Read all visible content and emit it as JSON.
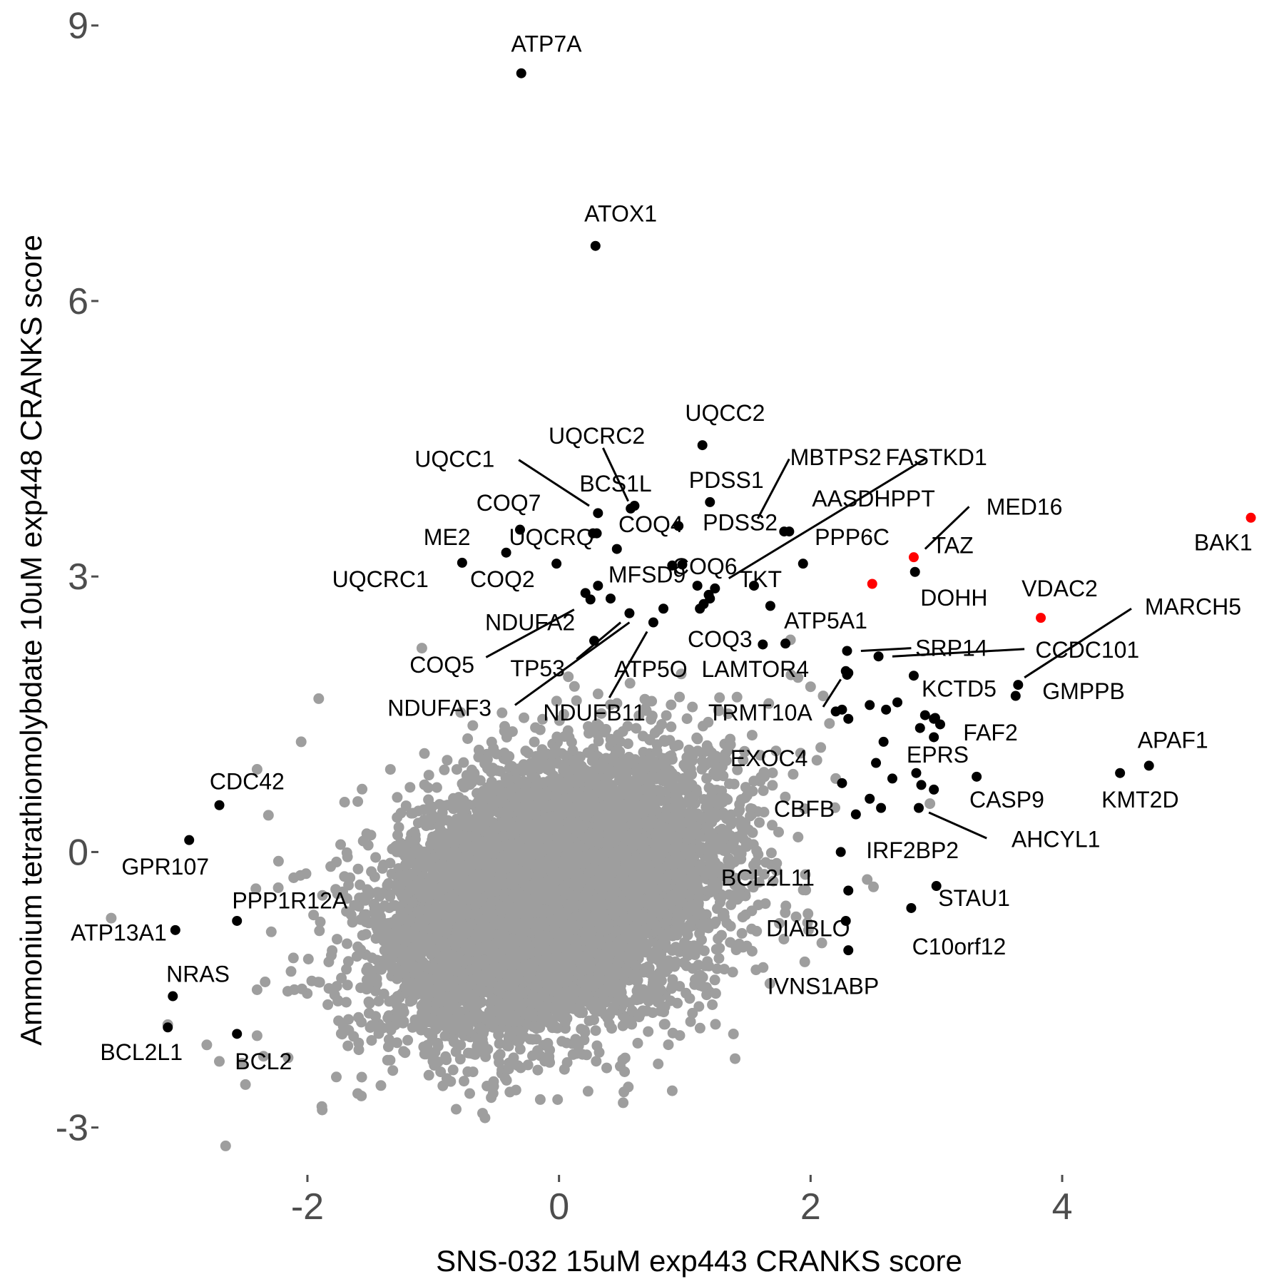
{
  "chart_data": {
    "type": "scatter",
    "title": "",
    "xlabel": "SNS-032 15uM exp443 CRANKS score",
    "ylabel": "Ammonium tetrathiomolybdate 10uM exp448 CRANKS score",
    "xlim": [
      -3.65,
      5.65
    ],
    "ylim": [
      -3.5,
      9.2
    ],
    "x_ticks": [
      -2,
      0,
      2,
      4
    ],
    "y_ticks": [
      -3,
      0,
      3,
      6,
      9
    ],
    "x_tick_labels": [
      "-2",
      "0",
      "2",
      "4"
    ],
    "y_tick_labels": [
      "-3",
      "0",
      "3",
      "6",
      "9"
    ],
    "grid": false,
    "legend": "none",
    "colors": {
      "background_genes": "#9e9e9e",
      "hit_genes": "#000000",
      "highlighted_genes": "#ff0000",
      "tick_text": "#4d4d4d"
    },
    "background_cloud": {
      "description_count": 9000,
      "center": [
        -0.05,
        -0.45
      ],
      "sd": [
        0.65,
        0.72
      ],
      "correlation": 0.32,
      "seed": 7
    },
    "background_outliers": [
      [
        -1.09,
        2.22
      ],
      [
        -1.91,
        1.67
      ],
      [
        -2.05,
        1.2
      ],
      [
        -2.4,
        0.9
      ],
      [
        -2.31,
        0.4
      ],
      [
        -2.23,
        -0.1
      ],
      [
        -2.41,
        -0.4
      ],
      [
        -3.56,
        -0.72
      ],
      [
        -2.13,
        -1.3
      ],
      [
        -2.4,
        -1.5
      ],
      [
        -3.11,
        -1.88
      ],
      [
        -2.8,
        -2.1
      ],
      [
        -2.7,
        -2.28
      ],
      [
        -2.52,
        -2.3
      ],
      [
        -2.4,
        -2.0
      ],
      [
        -1.77,
        -2.45
      ],
      [
        -1.6,
        -2.63
      ],
      [
        -0.71,
        -2.63
      ],
      [
        -0.52,
        -2.5
      ],
      [
        0.51,
        -2.73
      ],
      [
        0.9,
        -2.6
      ],
      [
        1.4,
        -2.25
      ],
      [
        -2.65,
        -3.2
      ],
      [
        1.84,
        2.31
      ],
      [
        1.9,
        1.9
      ],
      [
        2.0,
        1.8
      ],
      [
        2.1,
        1.7
      ],
      [
        2.45,
        -0.3
      ],
      [
        2.5,
        -0.38
      ],
      [
        2.2,
        0.8
      ],
      [
        2.15,
        1.4
      ],
      [
        2.05,
        1.0
      ]
    ],
    "points": [
      {
        "gene": "ATP7A",
        "x": -0.3,
        "y": 8.48,
        "color": "black",
        "label": [
          -0.1,
          8.78
        ]
      },
      {
        "gene": "ATOX1",
        "x": 0.29,
        "y": 6.6,
        "color": "black",
        "label": [
          0.49,
          6.93
        ]
      },
      {
        "gene": "UQCC2",
        "x": 1.14,
        "y": 4.43,
        "color": "black",
        "label": [
          1.32,
          4.76
        ]
      },
      {
        "gene": "UQCRC2",
        "x": 0.57,
        "y": 3.74,
        "color": "black",
        "label": [
          0.3,
          4.51
        ],
        "seg": [
          0.35,
          4.4,
          0.55,
          3.82
        ]
      },
      {
        "gene": "UQCC1",
        "x": 0.31,
        "y": 3.69,
        "color": "black",
        "label": [
          -0.83,
          4.26
        ],
        "seg": [
          -0.32,
          4.27,
          0.24,
          3.77
        ]
      },
      {
        "gene": "BCS1L",
        "x": 0.6,
        "y": 3.77,
        "color": "black",
        "label": [
          0.45,
          3.99
        ]
      },
      {
        "gene": "MBTPS2",
        "x": 1.83,
        "y": 3.49,
        "color": "black",
        "label": [
          2.2,
          4.28
        ],
        "seg": [
          1.83,
          4.28,
          1.58,
          3.63
        ]
      },
      {
        "gene": "FASTKD1",
        "x": 1.55,
        "y": 2.9,
        "color": "black",
        "label": [
          3.0,
          4.28
        ],
        "seg": [
          2.91,
          4.28,
          1.35,
          2.98
        ]
      },
      {
        "gene": "PDSS1",
        "x": 1.2,
        "y": 3.81,
        "color": "black",
        "label": [
          1.33,
          4.03
        ]
      },
      {
        "gene": "COQ7",
        "x": -0.31,
        "y": 3.51,
        "color": "black",
        "label": [
          -0.4,
          3.78
        ]
      },
      {
        "gene": "AASDHPPT",
        "x": 1.79,
        "y": 3.49,
        "color": "black",
        "label": [
          2.5,
          3.83
        ]
      },
      {
        "gene": "MED16",
        "x": 2.82,
        "y": 3.21,
        "color": "red",
        "label": [
          3.7,
          3.74
        ],
        "seg": [
          3.26,
          3.76,
          2.91,
          3.3
        ]
      },
      {
        "gene": "ME2",
        "x": -0.77,
        "y": 3.15,
        "color": "black",
        "label": [
          -0.89,
          3.41
        ]
      },
      {
        "gene": "UQCRQ",
        "x": -0.42,
        "y": 3.26,
        "color": "black",
        "label": [
          -0.06,
          3.41
        ]
      },
      {
        "gene": "COQ4",
        "x": 0.46,
        "y": 3.3,
        "color": "black",
        "label": [
          0.73,
          3.55
        ]
      },
      {
        "gene": "PDSS2",
        "x": 0.95,
        "y": 3.55,
        "color": "black",
        "label": [
          1.44,
          3.57
        ]
      },
      {
        "gene": "PPP6C",
        "x": 1.94,
        "y": 3.14,
        "color": "black",
        "label": [
          2.33,
          3.41
        ]
      },
      {
        "gene": "TAZ",
        "x": 2.83,
        "y": 3.05,
        "color": "black",
        "label": [
          3.13,
          3.32
        ]
      },
      {
        "gene": "BAK1",
        "x": 5.5,
        "y": 3.64,
        "color": "red",
        "label": [
          5.28,
          3.35
        ]
      },
      {
        "gene": "COQ6",
        "x": 1.24,
        "y": 2.87,
        "color": "black",
        "label": [
          1.16,
          3.09
        ]
      },
      {
        "gene": "UQCRC1",
        "x": -0.02,
        "y": 3.14,
        "color": "black",
        "label": [
          -1.42,
          2.95
        ]
      },
      {
        "gene": "COQ2",
        "x": 0.27,
        "y": 3.47,
        "color": "black",
        "label": [
          -0.45,
          2.95
        ]
      },
      {
        "gene": "MFSD9",
        "x": 0.98,
        "y": 3.13,
        "color": "black",
        "label": [
          0.7,
          3.0
        ]
      },
      {
        "gene": "TKT",
        "x": 1.2,
        "y": 2.76,
        "color": "black",
        "label": [
          1.6,
          2.95
        ]
      },
      {
        "gene": "DOHH",
        "x": 2.49,
        "y": 2.92,
        "color": "red",
        "label": [
          3.14,
          2.75
        ]
      },
      {
        "gene": "VDAC2",
        "x": 3.83,
        "y": 2.55,
        "color": "red",
        "label": [
          3.98,
          2.85
        ]
      },
      {
        "gene": "NDUFA2",
        "x": 0.41,
        "y": 2.76,
        "color": "black",
        "label": [
          -0.23,
          2.48
        ]
      },
      {
        "gene": "COQ5",
        "x": 0.21,
        "y": 2.82,
        "color": "black",
        "label": [
          -0.93,
          2.02
        ],
        "seg": [
          -0.58,
          2.12,
          0.12,
          2.64
        ]
      },
      {
        "gene": "TP53",
        "x": 0.56,
        "y": 2.6,
        "color": "black",
        "label": [
          -0.17,
          1.98
        ],
        "seg": [
          0.14,
          2.1,
          0.49,
          2.5
        ]
      },
      {
        "gene": "NDUFAF3",
        "x": 0.75,
        "y": 2.5,
        "color": "black",
        "label": [
          -0.95,
          1.55
        ],
        "seg": [
          -0.35,
          1.6,
          0.56,
          2.5
        ]
      },
      {
        "gene": "NDUFB11",
        "x": 0.28,
        "y": 2.3,
        "color": "black",
        "label": [
          0.28,
          1.5
        ],
        "seg": [
          0.4,
          1.68,
          0.7,
          2.4
        ]
      },
      {
        "gene": "ATP5O",
        "x": 1.12,
        "y": 2.65,
        "color": "black",
        "label": [
          0.73,
          1.97
        ]
      },
      {
        "gene": "LAMTOR4",
        "x": 1.62,
        "y": 2.26,
        "color": "black",
        "label": [
          1.56,
          1.97
        ]
      },
      {
        "gene": "COQ3",
        "x": 1.8,
        "y": 2.27,
        "color": "black",
        "label": [
          1.28,
          2.3
        ]
      },
      {
        "gene": "ATP5A1",
        "x": 1.68,
        "y": 2.68,
        "color": "black",
        "label": [
          2.12,
          2.5
        ]
      },
      {
        "gene": "MARCH5",
        "x": 3.65,
        "y": 1.82,
        "color": "black",
        "label": [
          5.04,
          2.65
        ],
        "seg": [
          4.55,
          2.65,
          3.7,
          1.9
        ]
      },
      {
        "gene": "SRP14",
        "x": 2.29,
        "y": 2.19,
        "color": "black",
        "label": [
          3.12,
          2.2
        ],
        "seg": [
          2.8,
          2.22,
          2.4,
          2.19
        ]
      },
      {
        "gene": "CCDC101",
        "x": 2.54,
        "y": 2.13,
        "color": "black",
        "label": [
          4.2,
          2.18
        ],
        "seg": [
          3.7,
          2.21,
          2.65,
          2.13
        ]
      },
      {
        "gene": "TRMT10A",
        "x": 2.25,
        "y": 1.55,
        "color": "black",
        "label": [
          1.6,
          1.5
        ],
        "seg": [
          2.1,
          1.58,
          2.24,
          1.88
        ]
      },
      {
        "gene": "KCTD5",
        "x": 2.82,
        "y": 1.92,
        "color": "black",
        "label": [
          3.18,
          1.76
        ]
      },
      {
        "gene": "GMPPB",
        "x": 3.63,
        "y": 1.7,
        "color": "black",
        "label": [
          4.17,
          1.73
        ]
      },
      {
        "gene": "FAF2",
        "x": 2.98,
        "y": 1.45,
        "color": "black",
        "label": [
          3.43,
          1.28
        ]
      },
      {
        "gene": "APAF1",
        "x": 4.69,
        "y": 0.94,
        "color": "black",
        "label": [
          4.88,
          1.2
        ]
      },
      {
        "gene": "EPRS",
        "x": 2.84,
        "y": 0.86,
        "color": "black",
        "label": [
          3.01,
          1.04
        ]
      },
      {
        "gene": "EXOC4",
        "x": 2.25,
        "y": 0.75,
        "color": "black",
        "label": [
          1.67,
          1.0
        ]
      },
      {
        "gene": "KMT2D",
        "x": 4.46,
        "y": 0.86,
        "color": "black",
        "label": [
          4.62,
          0.55
        ]
      },
      {
        "gene": "CASP9",
        "x": 3.32,
        "y": 0.82,
        "color": "black",
        "label": [
          3.56,
          0.55
        ]
      },
      {
        "gene": "CBFB",
        "x": 2.36,
        "y": 0.41,
        "color": "black",
        "label": [
          1.95,
          0.45
        ]
      },
      {
        "gene": "AHCYL1",
        "x": 2.86,
        "y": 0.48,
        "color": "black",
        "label": [
          3.95,
          0.12
        ],
        "seg": [
          3.4,
          0.15,
          2.94,
          0.43
        ]
      },
      {
        "gene": "IRF2BP2",
        "x": 2.24,
        "y": 0.0,
        "color": "black",
        "label": [
          2.81,
          0.0
        ]
      },
      {
        "gene": "CDC42",
        "x": -2.7,
        "y": 0.51,
        "color": "black",
        "label": [
          -2.48,
          0.75
        ]
      },
      {
        "gene": "GPR107",
        "x": -2.94,
        "y": 0.13,
        "color": "black",
        "label": [
          -3.13,
          -0.18
        ]
      },
      {
        "gene": "BCL2L11",
        "x": 2.3,
        "y": -0.42,
        "color": "black",
        "label": [
          1.66,
          -0.3
        ]
      },
      {
        "gene": "STAU1",
        "x": 3.0,
        "y": -0.37,
        "color": "black",
        "label": [
          3.3,
          -0.52
        ]
      },
      {
        "gene": "PPP1R12A",
        "x": -2.56,
        "y": -0.75,
        "color": "black",
        "label": [
          -2.14,
          -0.55
        ]
      },
      {
        "gene": "DIABLO",
        "x": 2.28,
        "y": -0.75,
        "color": "black",
        "label": [
          1.98,
          -0.85
        ]
      },
      {
        "gene": "C10orf12",
        "x": 2.8,
        "y": -0.61,
        "color": "black",
        "label": [
          3.18,
          -1.05
        ]
      },
      {
        "gene": "ATP13A1",
        "x": -3.05,
        "y": -0.85,
        "color": "black",
        "label": [
          -3.5,
          -0.9
        ]
      },
      {
        "gene": "IVNS1ABP",
        "x": 2.3,
        "y": -1.07,
        "color": "black",
        "label": [
          2.1,
          -1.48
        ]
      },
      {
        "gene": "NRAS",
        "x": -3.07,
        "y": -1.57,
        "color": "black",
        "label": [
          -2.87,
          -1.35
        ]
      },
      {
        "gene": "BCL2L1",
        "x": -3.11,
        "y": -1.91,
        "color": "black",
        "label": [
          -3.32,
          -2.2
        ]
      },
      {
        "gene": "BCL2",
        "x": -2.56,
        "y": -1.98,
        "color": "black",
        "label": [
          -2.35,
          -2.3
        ]
      }
    ],
    "extra_hit_points": [
      [
        0.3,
        3.47
      ],
      [
        0.9,
        3.12
      ],
      [
        1.1,
        2.9
      ],
      [
        1.19,
        2.8
      ],
      [
        1.15,
        2.7
      ],
      [
        0.31,
        2.9
      ],
      [
        0.25,
        2.75
      ],
      [
        0.83,
        2.65
      ],
      [
        2.28,
        1.97
      ],
      [
        2.29,
        1.93
      ],
      [
        2.3,
        1.95
      ],
      [
        2.47,
        1.6
      ],
      [
        2.6,
        1.55
      ],
      [
        2.69,
        1.63
      ],
      [
        2.91,
        1.49
      ],
      [
        2.99,
        1.46
      ],
      [
        2.98,
        1.25
      ],
      [
        3.03,
        1.39
      ],
      [
        2.87,
        1.35
      ],
      [
        2.58,
        1.2
      ],
      [
        2.52,
        0.97
      ],
      [
        2.65,
        0.8
      ],
      [
        2.88,
        0.73
      ],
      [
        2.47,
        0.58
      ],
      [
        2.56,
        0.48
      ],
      [
        2.2,
        1.53
      ],
      [
        2.3,
        1.45
      ],
      [
        2.98,
        0.68
      ]
    ]
  }
}
